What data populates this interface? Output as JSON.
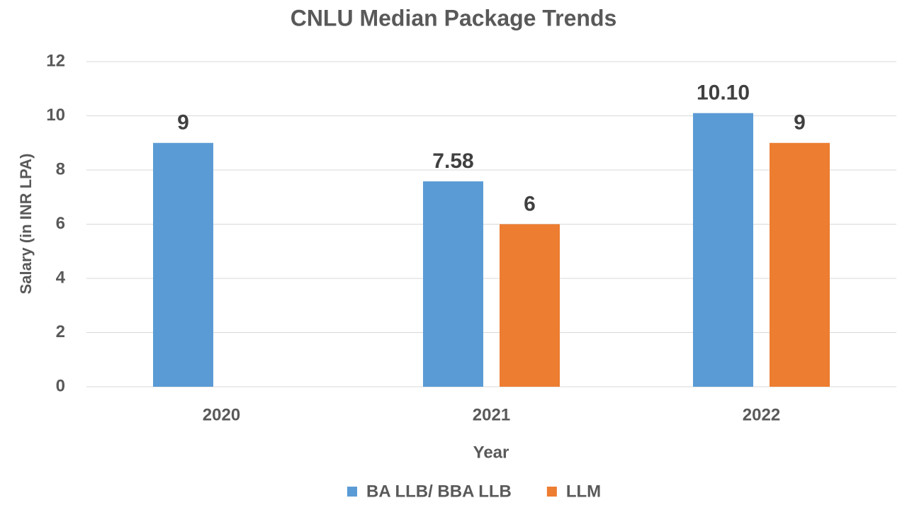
{
  "chart_data": {
    "type": "bar",
    "title": "CNLU Median Package Trends",
    "x_label": "Year",
    "y_label": "Salary (in INR LPA)",
    "categories": [
      "2020",
      "2021",
      "2022"
    ],
    "series": [
      {
        "name": "BA LLB/ BBA LLB",
        "color": "#5b9bd5",
        "values": [
          9,
          7.58,
          10.1
        ],
        "value_labels": [
          "9",
          "7.58",
          "10.10"
        ]
      },
      {
        "name": "LLM",
        "color": "#ed7d31",
        "values": [
          null,
          6,
          9
        ]
      }
    ],
    "ylim": [
      0,
      12
    ],
    "yticks": [
      0,
      2,
      4,
      6,
      8,
      10,
      12
    ],
    "grid": true,
    "legend": "bottom"
  }
}
